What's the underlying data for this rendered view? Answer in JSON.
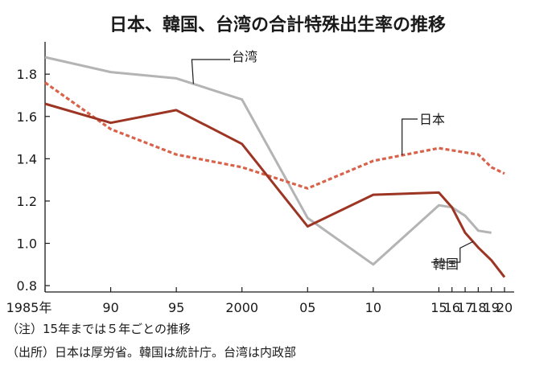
{
  "chart_data": {
    "type": "line",
    "title": "日本、韓国、台湾の合計特殊出生率の推移",
    "x": [
      1985,
      1990,
      1995,
      2000,
      2005,
      2010,
      2015,
      2016,
      2017,
      2018,
      2019,
      2020
    ],
    "x_tick_labels": [
      "1985年",
      "90",
      "95",
      "2000",
      "05",
      "10",
      "15",
      "16",
      "17",
      "18",
      "19",
      "20"
    ],
    "xlim": [
      1985,
      2020
    ],
    "y_ticks": [
      0.8,
      1.0,
      1.2,
      1.4,
      1.6,
      1.8
    ],
    "y_tick_labels": [
      "0.8",
      "1.0",
      "1.2",
      "1.4",
      "1.6",
      "1.8"
    ],
    "ylim": [
      0.77,
      1.93
    ],
    "series": [
      {
        "name": "台湾",
        "color": "#b4b4b4",
        "dash": "solid",
        "x": [
          1985,
          1990,
          1995,
          2000,
          2005,
          2010,
          2015,
          2016,
          2017,
          2018,
          2019
        ],
        "values": [
          1.88,
          1.81,
          1.78,
          1.68,
          1.12,
          0.9,
          1.18,
          1.17,
          1.13,
          1.06,
          1.05
        ]
      },
      {
        "name": "日本",
        "color": "#d9624a",
        "dash": "dotted",
        "x": [
          1985,
          1990,
          1995,
          2000,
          2005,
          2010,
          2015,
          2016,
          2017,
          2018,
          2019,
          2020
        ],
        "values": [
          1.76,
          1.54,
          1.42,
          1.36,
          1.26,
          1.39,
          1.45,
          1.44,
          1.43,
          1.42,
          1.36,
          1.33
        ]
      },
      {
        "name": "韓国",
        "color": "#9c3524",
        "dash": "solid",
        "x": [
          1985,
          1990,
          1995,
          2000,
          2005,
          2010,
          2015,
          2016,
          2017,
          2018,
          2019,
          2020
        ],
        "values": [
          1.66,
          1.57,
          1.63,
          1.47,
          1.08,
          1.23,
          1.24,
          1.17,
          1.05,
          0.98,
          0.92,
          0.84
        ]
      }
    ],
    "notes": [
      "（注）15年までは５年ごとの推移",
      "（出所）日本は厚労省。韓国は統計庁。台湾は内政部"
    ]
  }
}
